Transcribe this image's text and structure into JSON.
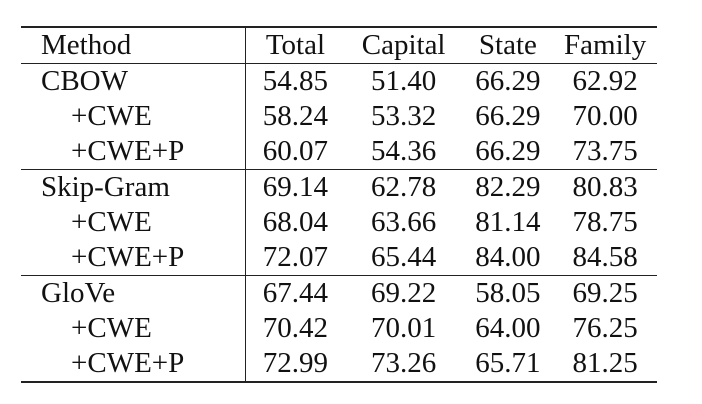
{
  "table": {
    "headers": [
      "Method",
      "Total",
      "Capital",
      "State",
      "Family"
    ],
    "groups": [
      {
        "rows": [
          {
            "method": "CBOW",
            "values": [
              "54.85",
              "51.40",
              "66.29",
              "62.92"
            ],
            "bold": [
              false,
              false,
              false,
              false
            ]
          },
          {
            "method": "+CWE",
            "values": [
              "58.24",
              "53.32",
              "66.29",
              "70.00"
            ],
            "bold": [
              false,
              false,
              false,
              false
            ]
          },
          {
            "method": "+CWE+P",
            "values": [
              "60.07",
              "54.36",
              "66.29",
              "73.75"
            ],
            "bold": [
              false,
              false,
              false,
              false
            ]
          }
        ]
      },
      {
        "rows": [
          {
            "method": "Skip-Gram",
            "values": [
              "69.14",
              "62.78",
              "82.29",
              "80.83"
            ],
            "bold": [
              false,
              false,
              false,
              false
            ]
          },
          {
            "method": "+CWE",
            "values": [
              "68.04",
              "63.66",
              "81.14",
              "78.75"
            ],
            "bold": [
              false,
              false,
              false,
              false
            ]
          },
          {
            "method": "+CWE+P",
            "values": [
              "72.07",
              "65.44",
              "84.00",
              "84.58"
            ],
            "bold": [
              false,
              false,
              true,
              true
            ]
          }
        ]
      },
      {
        "rows": [
          {
            "method": "GloVe",
            "values": [
              "67.44",
              "69.22",
              "58.05",
              "69.25"
            ],
            "bold": [
              false,
              false,
              false,
              false
            ]
          },
          {
            "method": "+CWE",
            "values": [
              "70.42",
              "70.01",
              "64.00",
              "76.25"
            ],
            "bold": [
              false,
              false,
              false,
              false
            ]
          },
          {
            "method": "+CWE+P",
            "values": [
              "72.99",
              "73.26",
              "65.71",
              "81.25"
            ],
            "bold": [
              true,
              true,
              false,
              false
            ]
          }
        ]
      }
    ]
  }
}
